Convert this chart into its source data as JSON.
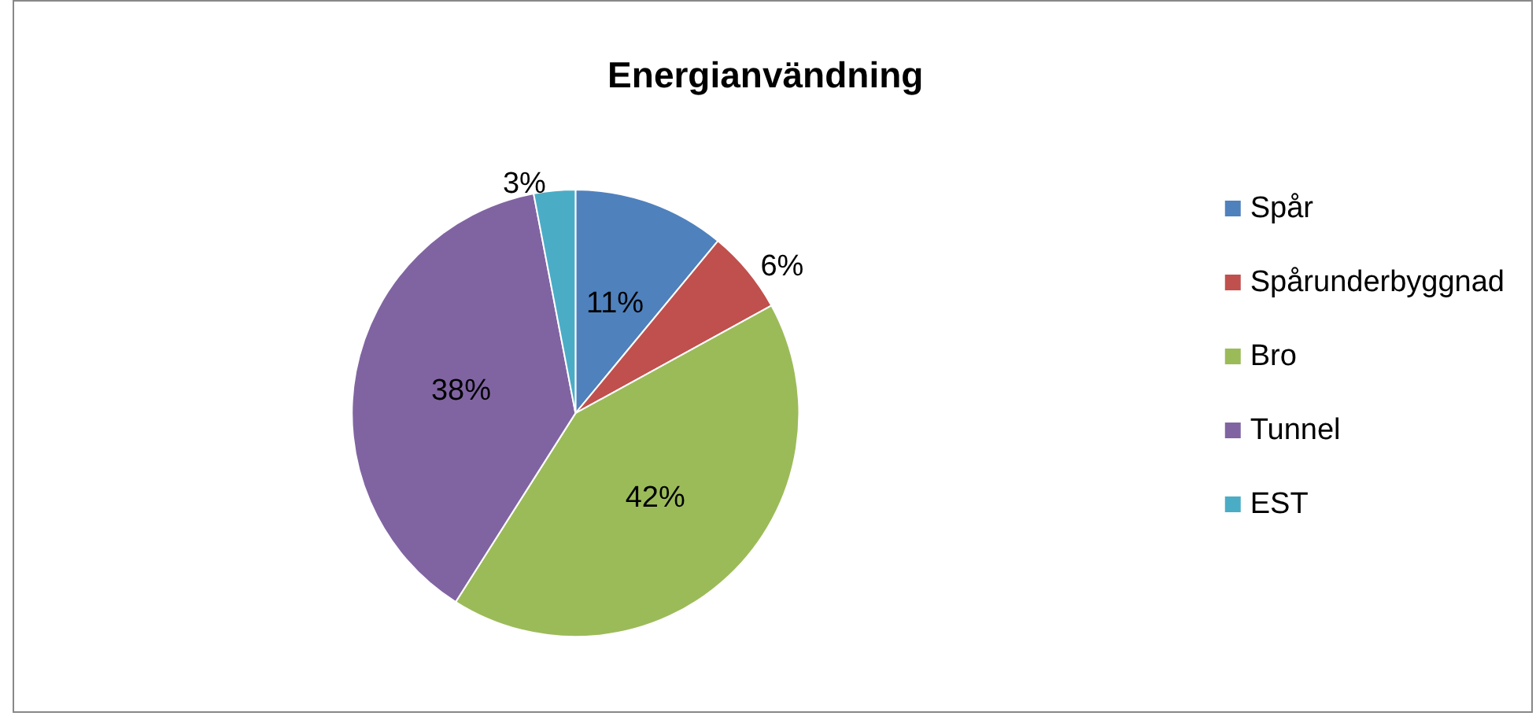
{
  "chart_data": {
    "type": "pie",
    "title": "Energianvändning",
    "categories": [
      "Spår",
      "Spårunderbyggnad",
      "Bro",
      "Tunnel",
      "EST"
    ],
    "values": [
      11,
      6,
      42,
      38,
      3
    ],
    "colors": [
      "#4f81bd",
      "#c0504d",
      "#9bbb59",
      "#8064a2",
      "#4bacc6"
    ],
    "value_labels": [
      "11%",
      "6%",
      "42%",
      "38%",
      "3%"
    ],
    "legend": "right"
  }
}
